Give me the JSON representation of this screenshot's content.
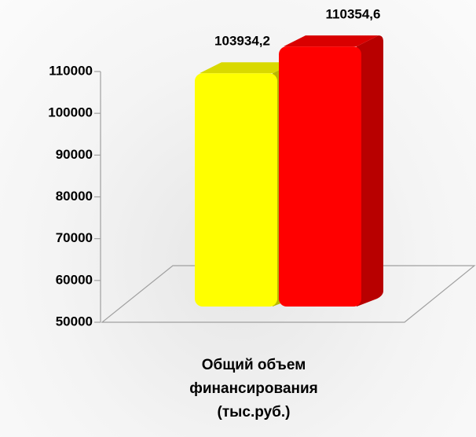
{
  "chart_data": {
    "type": "bar3d",
    "categories": [
      "Общий объем финансирования (тыс.руб.)"
    ],
    "series": [
      {
        "color": "#ffff00",
        "values": [
          103934.2
        ],
        "value_labels": [
          "103934,2"
        ]
      },
      {
        "color": "#ff0000",
        "values": [
          110354.6
        ],
        "value_labels": [
          "110354,6"
        ]
      }
    ],
    "ylim": [
      50000,
      110000
    ],
    "yticks": [
      50000,
      60000,
      70000,
      80000,
      90000,
      100000,
      110000
    ]
  }
}
